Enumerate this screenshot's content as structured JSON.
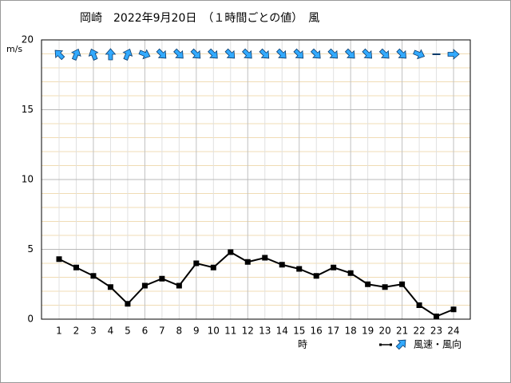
{
  "chart_data": {
    "type": "line",
    "title": "岡崎　2022年9月20日　（１時間ごとの値）　風",
    "y_label": "m/s",
    "x_label": "時",
    "legend_label": "風速・風向",
    "categories": [
      "1",
      "2",
      "3",
      "4",
      "5",
      "6",
      "7",
      "8",
      "9",
      "10",
      "11",
      "12",
      "13",
      "14",
      "15",
      "16",
      "17",
      "18",
      "19",
      "20",
      "21",
      "22",
      "23",
      "24"
    ],
    "series": [
      {
        "name": "風速",
        "color": "#000000",
        "values": [
          4.3,
          3.7,
          3.1,
          2.3,
          1.1,
          2.4,
          2.9,
          2.4,
          4.0,
          3.7,
          4.8,
          4.1,
          4.4,
          3.9,
          3.6,
          3.1,
          3.7,
          3.3,
          2.5,
          2.3,
          2.5,
          1.0,
          0.2,
          0.7
        ]
      }
    ],
    "wind_arrow_heading_deg": [
      315,
      22.5,
      337.5,
      0,
      22.5,
      112.5,
      135,
      135,
      135,
      135,
      135,
      135,
      135,
      135,
      135,
      135,
      135,
      135,
      135,
      135,
      135,
      112.5,
      null,
      90
    ],
    "arrow_color": "#33aaff",
    "ylim": [
      0,
      20
    ],
    "yticks": [
      0,
      5,
      10,
      15,
      20
    ],
    "minor_yticks": [
      1,
      2,
      3,
      4,
      6,
      7,
      8,
      9,
      11,
      12,
      13,
      14,
      16,
      17,
      18,
      19
    ],
    "grid": true
  }
}
